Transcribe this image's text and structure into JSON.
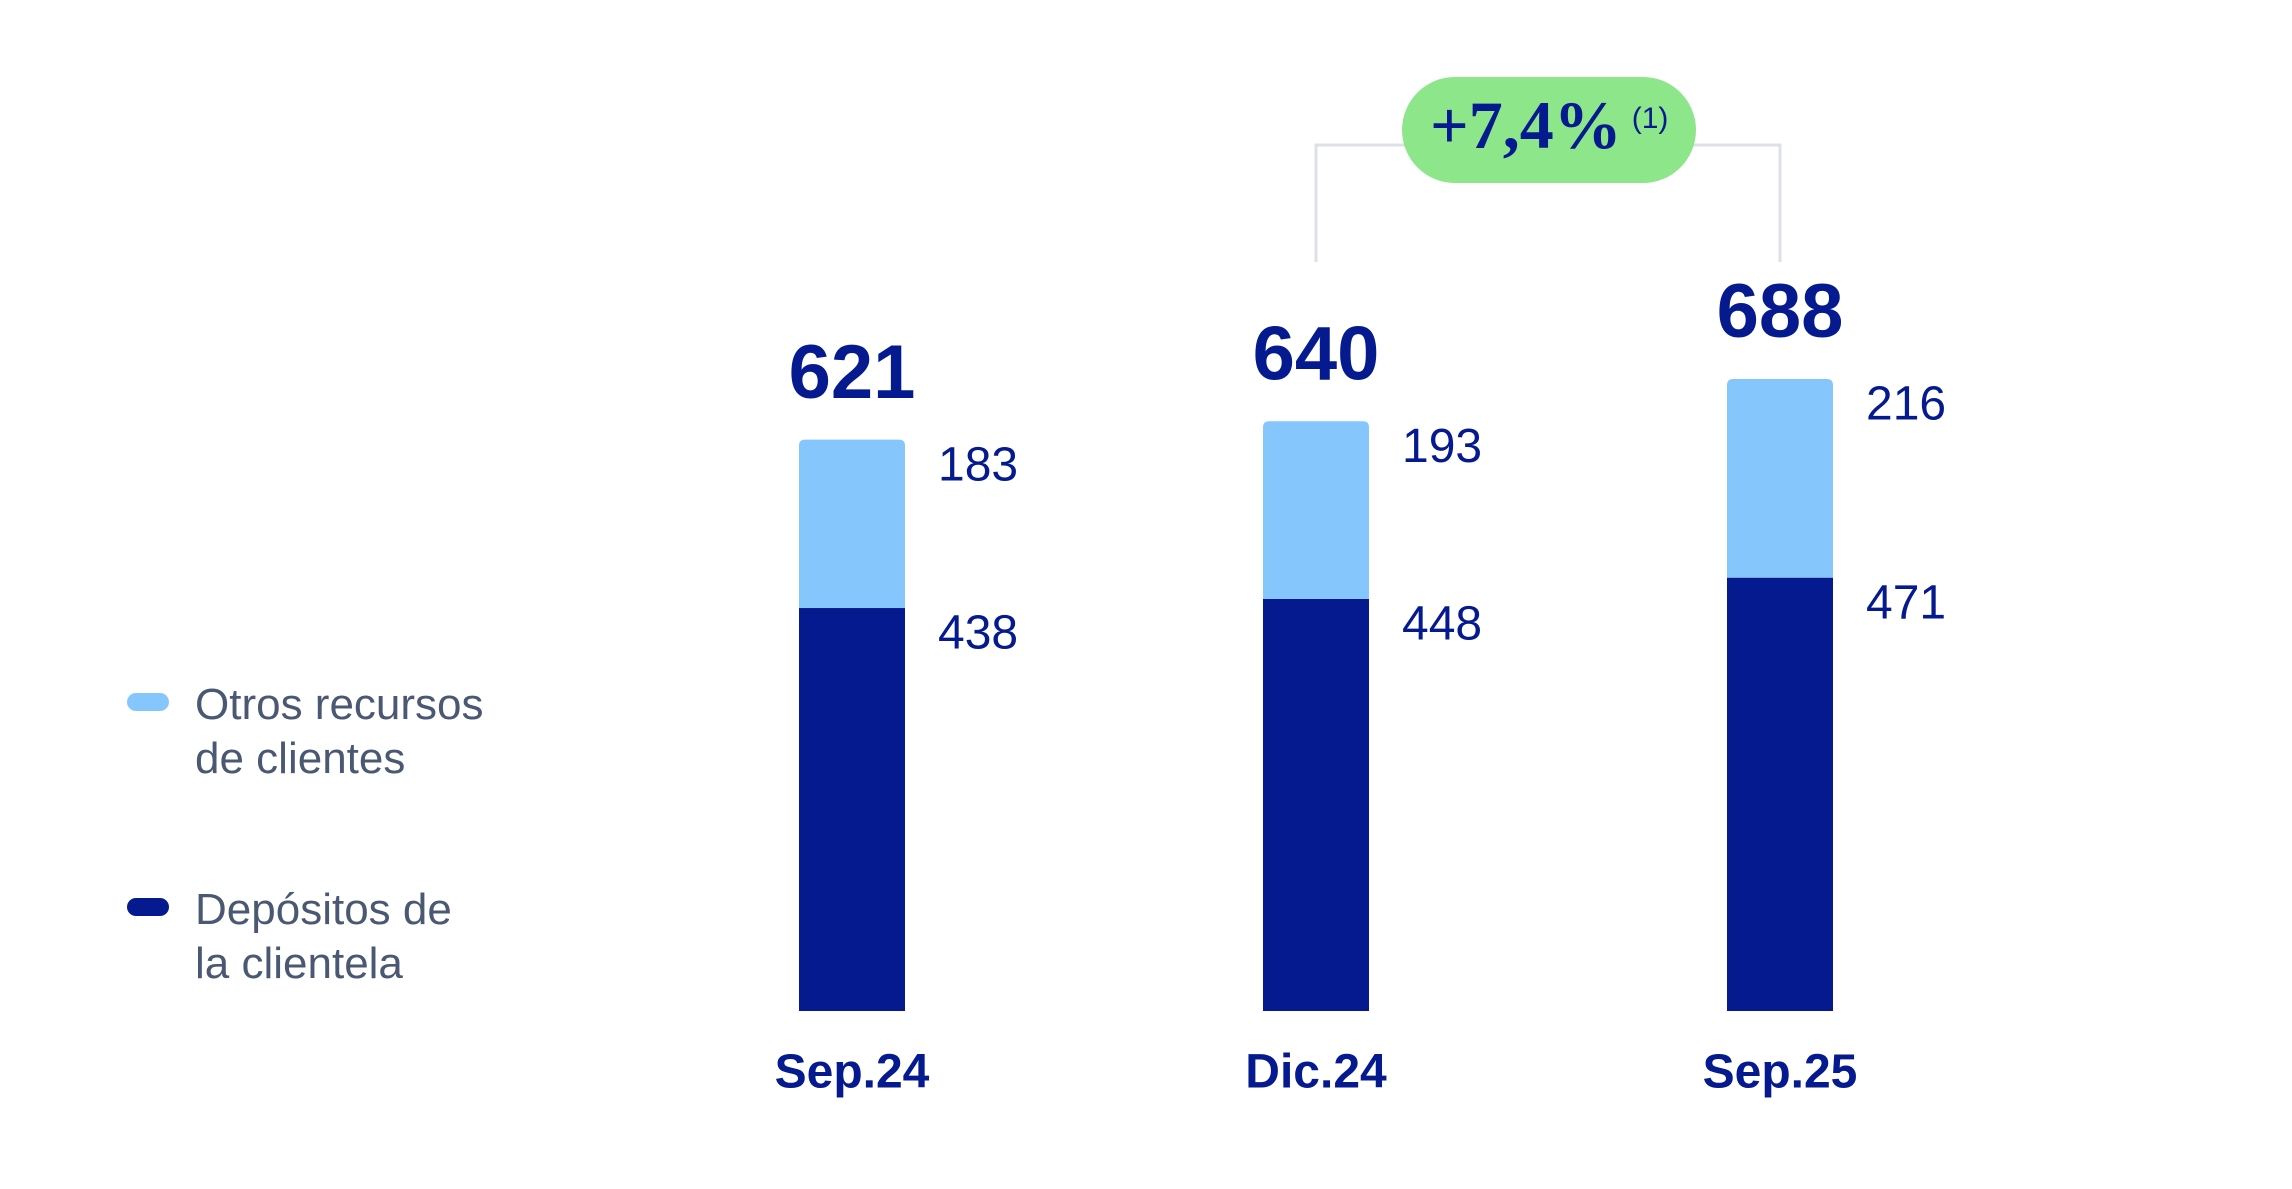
{
  "chart_data": {
    "type": "stacked_bar",
    "categories": [
      "Sep.24",
      "Dic.24",
      "Sep.25"
    ],
    "series": [
      {
        "name": "Depósitos de la clientela",
        "color": "#041a8e",
        "values": [
          438,
          448,
          471
        ]
      },
      {
        "name": "Otros recursos de clientes",
        "color": "#85c6fd",
        "values": [
          183,
          193,
          216
        ]
      }
    ],
    "totals": [
      621,
      640,
      688
    ],
    "annotation": {
      "text": "+7,4%",
      "note": "(1)",
      "color": "#8ee68a"
    },
    "label_color": "#041a8e"
  }
}
